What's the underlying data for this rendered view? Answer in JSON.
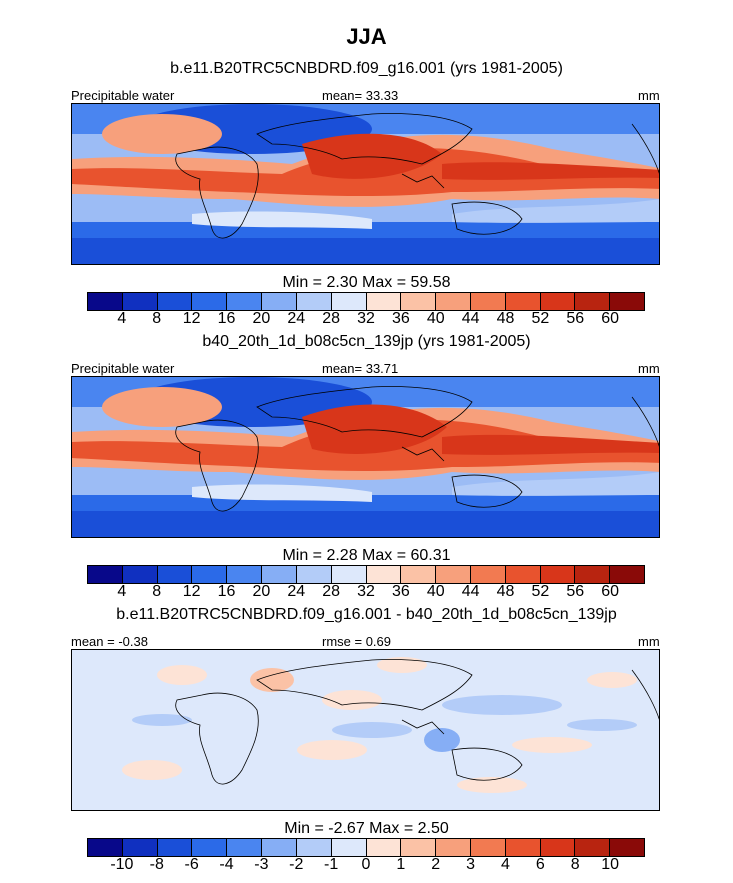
{
  "header": {
    "title": "JJA"
  },
  "panels": [
    {
      "subtitle": "b.e11.B20TRC5CNBDRD.f09_g16.001 (yrs 1981-2005)",
      "left_label": "Precipitable water",
      "center_label": "mean=  33.33",
      "right_label": "mm",
      "minmax": "Min =   2.30 Max =  59.58",
      "colorbar": "abs"
    },
    {
      "subtitle": "b40_20th_1d_b08c5cn_139jp (yrs 1981-2005)",
      "left_label": "Precipitable water",
      "center_label": "mean=  33.71",
      "right_label": "mm",
      "minmax": "Min =   2.28 Max =  60.31",
      "colorbar": "abs"
    },
    {
      "subtitle": "b.e11.B20TRC5CNBDRD.f09_g16.001 - b40_20th_1d_b08c5cn_139jp",
      "left_label": "mean =  -0.38",
      "center_label": "rmse =   0.69",
      "right_label": "mm",
      "minmax": "Min =  -2.67 Max =   2.50",
      "colorbar": "diff"
    }
  ],
  "colorbars": {
    "abs": {
      "ticks": [
        "4",
        "8",
        "12",
        "16",
        "20",
        "24",
        "28",
        "32",
        "36",
        "40",
        "44",
        "48",
        "52",
        "56",
        "60"
      ],
      "colors": [
        "#08088a",
        "#1030c0",
        "#1a4fd8",
        "#2b6ae8",
        "#4a85f0",
        "#86aef5",
        "#b3ccf8",
        "#dde8fb",
        "#fde3d6",
        "#fbc2a6",
        "#f7a07c",
        "#f27a51",
        "#e8532e",
        "#d8361a",
        "#b82410",
        "#8a0a08"
      ]
    },
    "diff": {
      "ticks": [
        "-10",
        "-8",
        "-6",
        "-4",
        "-3",
        "-2",
        "-1",
        "0",
        "1",
        "2",
        "3",
        "4",
        "6",
        "8",
        "10"
      ],
      "colors": [
        "#08088a",
        "#1030c0",
        "#1a4fd8",
        "#2b6ae8",
        "#4a85f0",
        "#86aef5",
        "#b3ccf8",
        "#dde8fb",
        "#fde3d6",
        "#fbc2a6",
        "#f7a07c",
        "#f27a51",
        "#e8532e",
        "#d8361a",
        "#b82410",
        "#8a0a08"
      ]
    }
  }
}
